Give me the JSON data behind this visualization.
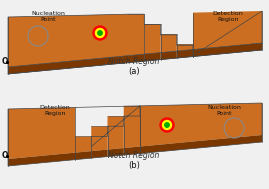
{
  "fig_width": 2.69,
  "fig_height": 1.89,
  "dpi": 100,
  "bg_color": "#f0f0f0",
  "track_color_top": "#CC6E22",
  "track_color_side": "#7A3800",
  "track_color_mid": "#9B4A10",
  "notch_label": "Notch Region",
  "nucleation_label": "Nucleation\nPoint",
  "detection_label": "Detection\nRegion",
  "label_a": "(a)",
  "label_b": "(b)",
  "o_label": "O",
  "skyrmion_colors": [
    "#FF0000",
    "#FFFF00",
    "#00AA00"
  ],
  "font_size": 5.5,
  "small_font": 4.5
}
